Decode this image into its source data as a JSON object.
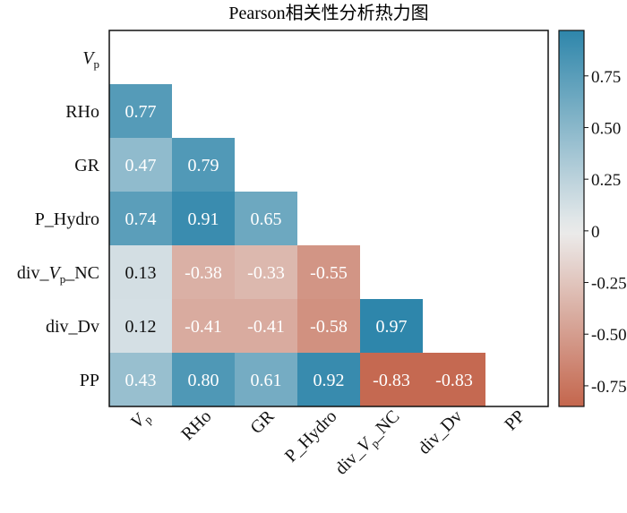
{
  "chart_data": {
    "type": "heatmap",
    "title": "Pearson相关性分析热力图",
    "variables": [
      "V_p",
      "RHo",
      "GR",
      "P_Hydro",
      "div_V_p_NC",
      "div_Dv",
      "PP"
    ],
    "matrix": [
      [
        null,
        null,
        null,
        null,
        null,
        null,
        null
      ],
      [
        0.77,
        null,
        null,
        null,
        null,
        null,
        null
      ],
      [
        0.47,
        0.79,
        null,
        null,
        null,
        null,
        null
      ],
      [
        0.74,
        0.91,
        0.65,
        null,
        null,
        null,
        null
      ],
      [
        0.13,
        -0.38,
        -0.33,
        -0.55,
        null,
        null,
        null
      ],
      [
        0.12,
        -0.41,
        -0.41,
        -0.58,
        0.97,
        null,
        null
      ],
      [
        0.43,
        0.8,
        0.61,
        0.92,
        -0.83,
        -0.83,
        null
      ]
    ],
    "value_labels": [
      [
        "",
        "",
        "",
        "",
        "",
        "",
        ""
      ],
      [
        "0.77",
        "",
        "",
        "",
        "",
        "",
        ""
      ],
      [
        "0.47",
        "0.79",
        "",
        "",
        "",
        "",
        ""
      ],
      [
        "0.74",
        "0.91",
        "0.65",
        "",
        "",
        "",
        ""
      ],
      [
        "0.13",
        "-0.38",
        "-0.33",
        "-0.55",
        "",
        "",
        ""
      ],
      [
        "0.12",
        "-0.41",
        "-0.41",
        "-0.58",
        "0.97",
        "",
        ""
      ],
      [
        "0.43",
        "0.80",
        "0.61",
        "0.92",
        "-0.83",
        "-0.83",
        ""
      ]
    ],
    "colorbar": {
      "range": [
        -0.85,
        0.97
      ],
      "ticks": [
        0.75,
        0.5,
        0.25,
        0,
        -0.25,
        -0.5,
        -0.75
      ],
      "tick_labels": [
        "0.75",
        "0.50",
        "0.25",
        "0",
        "-0.25",
        "-0.50",
        "-0.75"
      ],
      "colors": {
        "positive": "#2e86ab",
        "neutral": "#ececec",
        "negative": "#c4664d"
      }
    },
    "grid": false,
    "legend": "right"
  }
}
